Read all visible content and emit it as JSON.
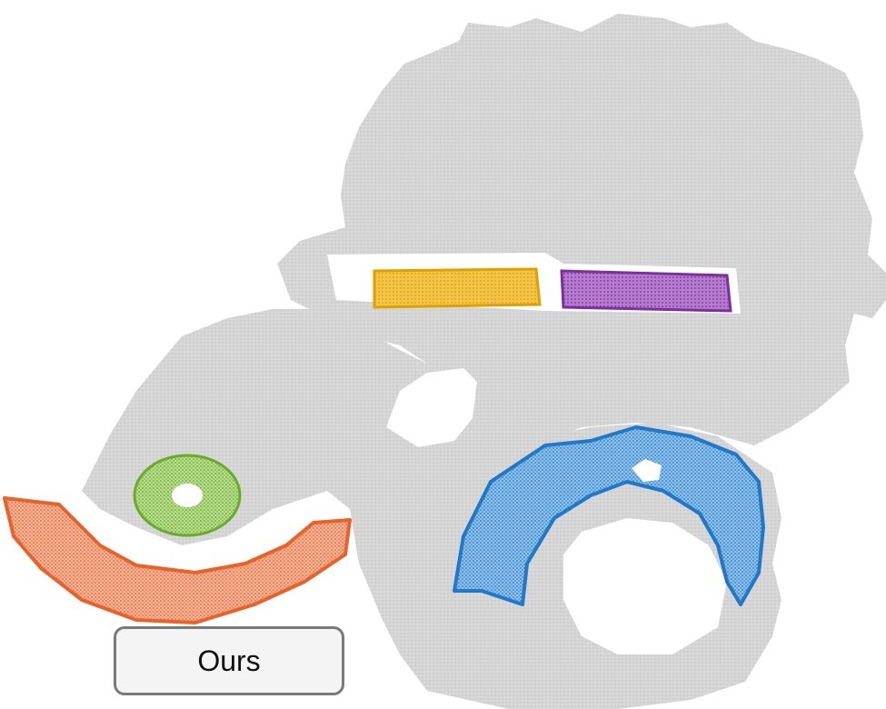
{
  "caption": {
    "label": "Ours"
  },
  "colors": {
    "background": "#ffffff",
    "point_cloud": "#d3d3d3",
    "yellow_segment": "#eeb21a",
    "purple_segment": "#8e44ad",
    "green_segment": "#7fbf3f",
    "orange_segment": "#e8622a",
    "blue_segment": "#1f78c8"
  }
}
